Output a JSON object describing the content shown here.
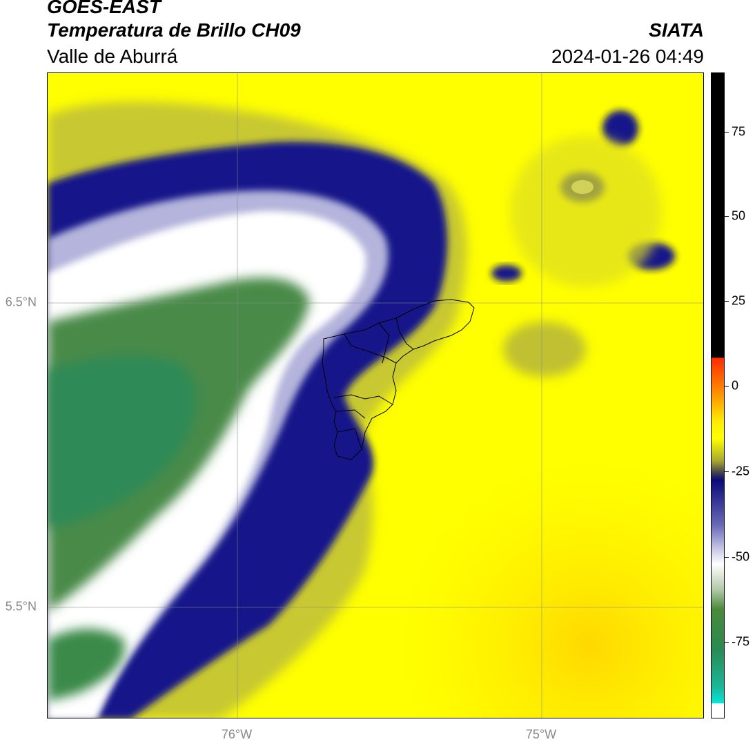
{
  "header": {
    "satellite": "GOES-EAST",
    "product": "Temperatura de Brillo CH09",
    "region": "Valle de Aburrá",
    "brand": "SIATA",
    "timestamp": "2024-01-26 04:49"
  },
  "map": {
    "lat_labels": [
      "6.5°N",
      "5.5°N"
    ],
    "lon_labels": [
      "76°W",
      "75°W"
    ],
    "gridlines": true,
    "boundary": "Valle de Aburrá municipalities outline"
  },
  "colorbar": {
    "labels": [
      "75",
      "50",
      "25",
      "0",
      "-25",
      "-50",
      "-75"
    ],
    "range": [
      -95,
      92
    ],
    "colors": {
      "black": "#000000",
      "red": "#ff2a00",
      "orange": "#ff9900",
      "yellow": "#ffff00",
      "olive": "#a8a830",
      "navy": "#0a0a7a",
      "lavender": "#b8b8dc",
      "white": "#ffffff",
      "green": "#3c8a3c",
      "teal": "#1e9e6e",
      "cyan": "#00e6d6"
    }
  }
}
